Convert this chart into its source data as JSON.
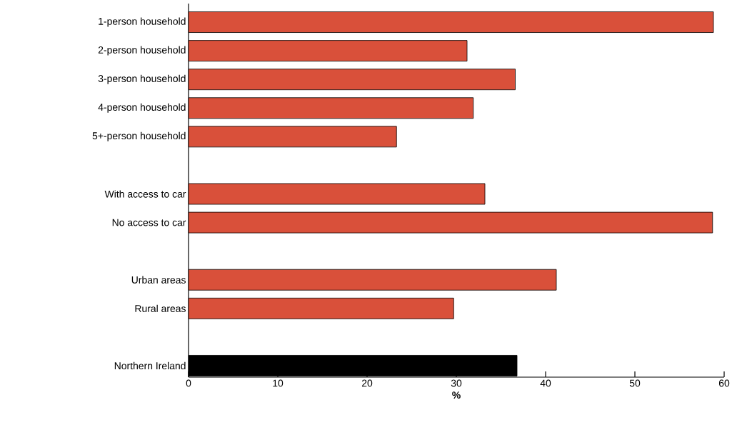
{
  "chart_data": {
    "type": "bar",
    "orientation": "horizontal",
    "xlabel": "%",
    "categories": [
      "1-person household",
      "2-person household",
      "3-person household",
      "4-person household",
      "5+-person household",
      null,
      "With access to car",
      "No access to car",
      null,
      "Urban areas",
      "Rural areas",
      null,
      "Northern Ireland"
    ],
    "values": [
      58.8,
      31.2,
      36.6,
      31.9,
      23.3,
      null,
      33.2,
      58.7,
      null,
      41.2,
      29.7,
      null,
      36.8
    ],
    "colors": [
      "#d9503a",
      "#d9503a",
      "#d9503a",
      "#d9503a",
      "#d9503a",
      null,
      "#d9503a",
      "#d9503a",
      null,
      "#d9503a",
      "#d9503a",
      null,
      "#000000"
    ],
    "xlim": [
      0,
      60
    ],
    "xticks": [
      0,
      10,
      20,
      30,
      40,
      50,
      60
    ]
  }
}
